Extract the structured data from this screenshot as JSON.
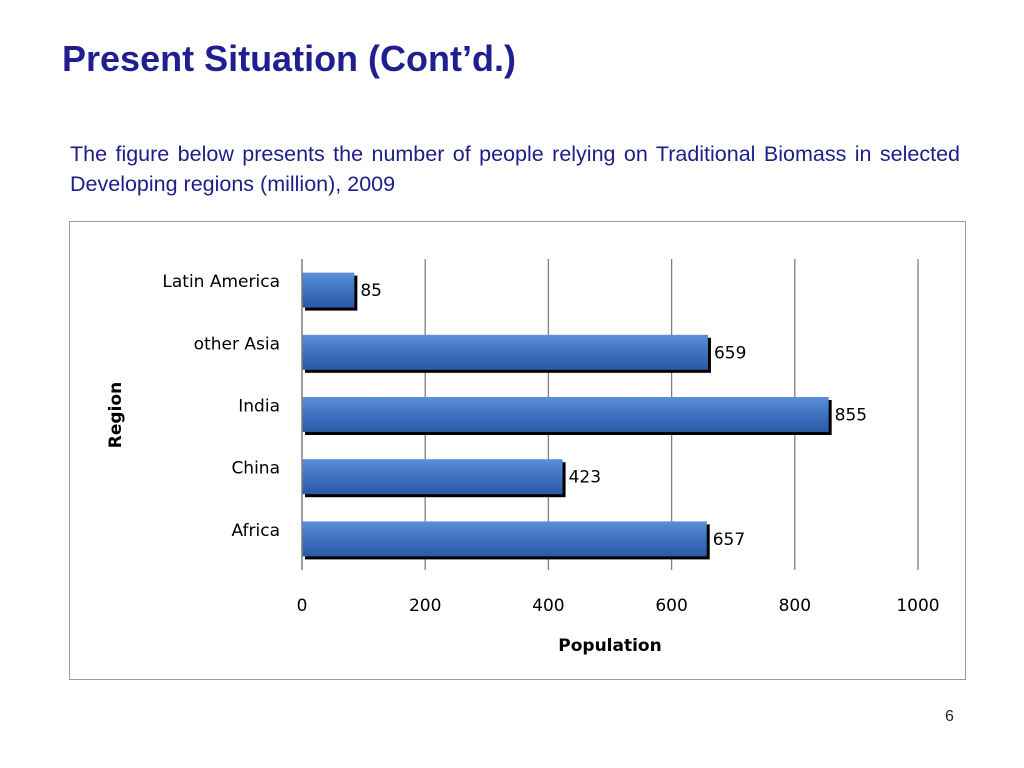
{
  "slide": {
    "title": "Present Situation (Cont’d.)",
    "description": "The figure below presents the number of people relying on Traditional Biomass in selected Developing regions (million), 2009",
    "page_number": "6"
  },
  "colors": {
    "title": "#1f1f8f",
    "bar_fill": "#3a6fc0",
    "bar_shadow": "#000000",
    "gridline": "#7f7f7f"
  },
  "chart_data": {
    "type": "bar",
    "orientation": "horizontal",
    "categories": [
      "Latin America",
      "other Asia",
      "India",
      "China",
      "Africa"
    ],
    "values": [
      85,
      659,
      855,
      423,
      657
    ],
    "data_labels": [
      "85",
      "659",
      "855",
      "423",
      "657"
    ],
    "xlabel": "Population",
    "ylabel": "Region",
    "xlim": [
      0,
      1000
    ],
    "x_ticks": [
      0,
      200,
      400,
      600,
      800,
      1000
    ],
    "x_tick_labels": [
      "0",
      "200",
      "400",
      "600",
      "800",
      "1000"
    ],
    "grid": true,
    "legend": "none"
  }
}
